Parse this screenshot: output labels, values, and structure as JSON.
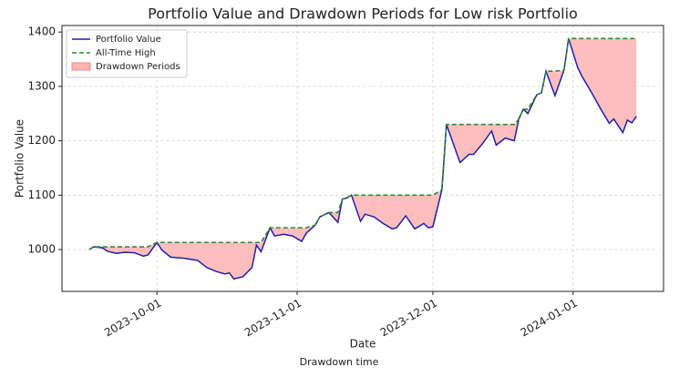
{
  "chart_data": {
    "type": "line",
    "title": "Portfolio Value and Drawdown Periods for Low risk Portfolio",
    "xlabel": "Date",
    "ylabel": "Portfolio Value",
    "caption": "Drawdown time",
    "x": [
      "2023-09-16",
      "2023-09-17",
      "2023-09-19",
      "2023-09-20",
      "2023-09-22",
      "2023-09-24",
      "2023-09-26",
      "2023-09-28",
      "2023-09-29",
      "2023-10-01",
      "2023-10-02",
      "2023-10-04",
      "2023-10-07",
      "2023-10-10",
      "2023-10-12",
      "2023-10-14",
      "2023-10-16",
      "2023-10-17",
      "2023-10-18",
      "2023-10-20",
      "2023-10-22",
      "2023-10-23",
      "2023-10-24",
      "2023-10-26",
      "2023-10-27",
      "2023-10-29",
      "2023-10-31",
      "2023-11-02",
      "2023-11-03",
      "2023-11-05",
      "2023-11-06",
      "2023-11-08",
      "2023-11-10",
      "2023-11-11",
      "2023-11-12",
      "2023-11-13",
      "2023-11-15",
      "2023-11-16",
      "2023-11-18",
      "2023-11-20",
      "2023-11-22",
      "2023-11-23",
      "2023-11-25",
      "2023-11-27",
      "2023-11-29",
      "2023-11-30",
      "2023-12-01",
      "2023-12-03",
      "2023-12-04",
      "2023-12-07",
      "2023-12-09",
      "2023-12-10",
      "2023-12-12",
      "2023-12-14",
      "2023-12-15",
      "2023-12-17",
      "2023-12-19",
      "2023-12-20",
      "2023-12-21",
      "2023-12-22",
      "2023-12-24",
      "2023-12-25",
      "2023-12-26",
      "2023-12-28",
      "2023-12-30",
      "2023-12-31",
      "2024-01-02",
      "2024-01-03",
      "2024-01-05",
      "2024-01-07",
      "2024-01-09",
      "2024-01-10",
      "2024-01-12",
      "2024-01-13",
      "2024-01-14",
      "2024-01-15"
    ],
    "series": [
      {
        "name": "Portfolio Value",
        "color": "#1f1fa8",
        "style": "solid",
        "values": [
          1000,
          1005,
          1003,
          997,
          993,
          995,
          994,
          988,
          990,
          1013,
          1000,
          986,
          984,
          980,
          967,
          960,
          955,
          957,
          946,
          950,
          967,
          1008,
          996,
          1040,
          1025,
          1028,
          1025,
          1015,
          1030,
          1045,
          1060,
          1068,
          1050,
          1093,
          1095,
          1100,
          1052,
          1065,
          1060,
          1048,
          1038,
          1040,
          1062,
          1038,
          1048,
          1040,
          1042,
          1110,
          1230,
          1160,
          1175,
          1175,
          1195,
          1218,
          1192,
          1205,
          1200,
          1240,
          1258,
          1250,
          1285,
          1288,
          1328,
          1283,
          1330,
          1388,
          1335,
          1318,
          1290,
          1260,
          1232,
          1240,
          1215,
          1238,
          1233,
          1245
        ]
      },
      {
        "name": "All-Time High",
        "color": "#2e8b2e",
        "style": "dashed",
        "values": [
          1000,
          1005,
          1005,
          1005,
          1005,
          1005,
          1005,
          1005,
          1005,
          1013,
          1013,
          1013,
          1013,
          1013,
          1013,
          1013,
          1013,
          1013,
          1013,
          1013,
          1013,
          1013,
          1013,
          1040,
          1040,
          1040,
          1040,
          1040,
          1040,
          1045,
          1060,
          1068,
          1068,
          1093,
          1095,
          1100,
          1100,
          1100,
          1100,
          1100,
          1100,
          1100,
          1100,
          1100,
          1100,
          1100,
          1100,
          1110,
          1230,
          1230,
          1230,
          1230,
          1230,
          1230,
          1230,
          1230,
          1230,
          1240,
          1258,
          1258,
          1285,
          1288,
          1328,
          1328,
          1330,
          1388,
          1388,
          1388,
          1388,
          1388,
          1388,
          1388,
          1388,
          1388,
          1388,
          1388
        ]
      }
    ],
    "fill": {
      "name": "Drawdown Periods",
      "color": "#ffb3b3"
    },
    "xlim": [
      "2023-09-10",
      "2024-01-21"
    ],
    "xticks": [
      "2023-10-01",
      "2023-11-01",
      "2023-12-01",
      "2024-01-01"
    ],
    "ylim": [
      923,
      1412
    ],
    "yticks": [
      1000,
      1100,
      1200,
      1300,
      1400
    ],
    "grid": true,
    "legend": "upper left"
  }
}
